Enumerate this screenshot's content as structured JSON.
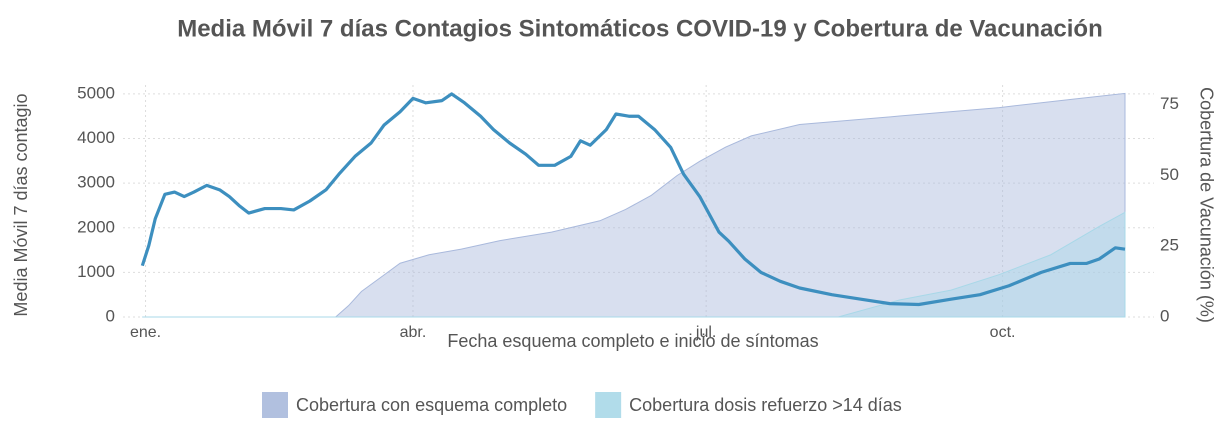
{
  "chart_data": {
    "type": "line",
    "title": "Media Móvil 7 días Contagios Sintomáticos COVID-19 y Cobertura de Vacunación",
    "x_label": "Fecha esquema completo e inicio de síntomas",
    "y_label": "Media Móvil 7 días contagio",
    "y2_label": "Cobertura de Vacunación (%)",
    "xlim": [
      0,
      320
    ],
    "xticks": [
      {
        "value": 7,
        "label": "ene."
      },
      {
        "value": 90,
        "label": "abr."
      },
      {
        "value": 181,
        "label": "jul."
      },
      {
        "value": 273,
        "label": "oct."
      }
    ],
    "ylim": [
      0,
      5200
    ],
    "yticks": [
      0,
      1000,
      2000,
      3000,
      4000,
      5000
    ],
    "y2lim": [
      0,
      79.5
    ],
    "y2ticks": [
      0,
      25,
      50,
      75
    ],
    "grid": true,
    "legend": "bottom",
    "series": [
      {
        "name": "Cobertura con esquema completo",
        "type": "area",
        "axis": "y2",
        "color": "#a9b9dc",
        "x": [
          6,
          66,
          70,
          74,
          80,
          86,
          95,
          105,
          117,
          133,
          148,
          156,
          164,
          172,
          179,
          187,
          195,
          210,
          241,
          272,
          295,
          311
        ],
        "values": [
          0,
          0,
          4,
          9,
          14,
          19,
          22,
          24,
          27,
          30,
          34,
          38,
          43,
          50,
          55,
          60,
          64,
          68,
          71,
          74,
          77,
          79
        ]
      },
      {
        "name": "Cobertura dosis refuerzo >14 días",
        "type": "area",
        "axis": "y2",
        "color": "#a8d8e8",
        "x": [
          6,
          222,
          241,
          257,
          272,
          288,
          303,
          311
        ],
        "values": [
          0,
          0,
          6,
          9.5,
          15,
          22,
          32,
          37
        ]
      },
      {
        "type": "line",
        "axis": "y",
        "color": "#3d8fbf",
        "x": [
          6,
          8,
          10,
          13,
          16,
          19,
          22,
          26,
          30,
          33,
          36,
          39,
          44,
          49,
          53,
          58,
          63,
          67,
          72,
          77,
          81,
          86,
          90,
          94,
          99,
          102,
          106,
          111,
          115,
          120,
          125,
          129,
          134,
          139,
          142,
          145,
          150,
          153,
          157,
          160,
          165,
          170,
          174,
          179,
          182,
          185,
          188,
          193,
          198,
          204,
          210,
          220,
          229,
          238,
          247,
          257,
          266,
          275,
          285,
          294,
          299,
          303,
          308,
          311
        ],
        "values": [
          1150,
          1600,
          2200,
          2750,
          2800,
          2700,
          2800,
          2950,
          2850,
          2700,
          2500,
          2330,
          2430,
          2430,
          2400,
          2600,
          2850,
          3200,
          3600,
          3900,
          4300,
          4600,
          4900,
          4800,
          4850,
          5000,
          4800,
          4500,
          4200,
          3900,
          3650,
          3400,
          3400,
          3600,
          3950,
          3850,
          4200,
          4550,
          4500,
          4500,
          4200,
          3800,
          3200,
          2700,
          2300,
          1900,
          1700,
          1300,
          1000,
          800,
          650,
          500,
          400,
          300,
          280,
          400,
          500,
          700,
          1000,
          1200,
          1200,
          1300,
          1550,
          1520
        ]
      }
    ]
  }
}
